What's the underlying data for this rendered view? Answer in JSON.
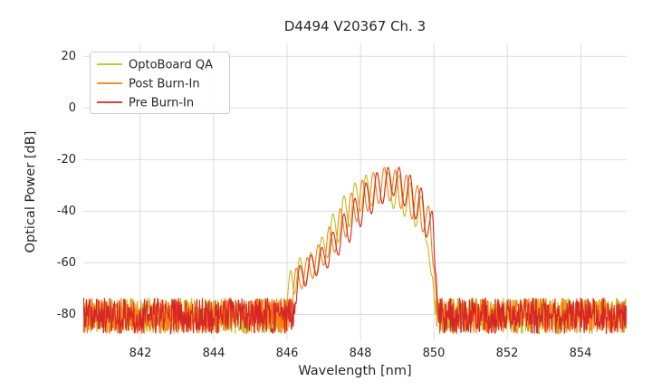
{
  "chart_data": {
    "type": "line",
    "title": "D4494 V20367 Ch. 3",
    "xlabel": "Wavelength [nm]",
    "ylabel": "Optical Power [dB]",
    "xlim": [
      840.45,
      855.25
    ],
    "ylim": [
      -90,
      25
    ],
    "x_ticks": [
      "842",
      "844",
      "846",
      "848",
      "850",
      "852",
      "854"
    ],
    "x_tick_values": [
      842,
      844,
      846,
      848,
      850,
      852,
      854
    ],
    "y_ticks": [
      "20",
      "0",
      "-20",
      "-40",
      "-60",
      "-80"
    ],
    "y_tick_values": [
      20,
      0,
      -20,
      -40,
      -60,
      -80
    ],
    "grid": true,
    "legend_position": "upper left",
    "noise_floor": {
      "mean": -80.5,
      "spread": 7,
      "step_nm": 0.012
    },
    "series": [
      {
        "name": "OptoBoard QA",
        "color": "#bcbd22",
        "seed": 11,
        "signal": [
          [
            845.95,
            -80
          ],
          [
            846.1,
            -63
          ],
          [
            846.2,
            -72
          ],
          [
            846.35,
            -58
          ],
          [
            846.5,
            -68
          ],
          [
            846.65,
            -56
          ],
          [
            846.8,
            -64
          ],
          [
            846.95,
            -50
          ],
          [
            847.1,
            -58
          ],
          [
            847.25,
            -41
          ],
          [
            847.4,
            -52
          ],
          [
            847.55,
            -34
          ],
          [
            847.7,
            -46
          ],
          [
            847.85,
            -29
          ],
          [
            848.0,
            -40
          ],
          [
            848.15,
            -26
          ],
          [
            848.3,
            -38
          ],
          [
            848.45,
            -25
          ],
          [
            848.6,
            -37
          ],
          [
            848.75,
            -25
          ],
          [
            848.9,
            -39
          ],
          [
            849.05,
            -26
          ],
          [
            849.2,
            -42
          ],
          [
            849.35,
            -29
          ],
          [
            849.5,
            -46
          ],
          [
            849.65,
            -34
          ],
          [
            849.8,
            -52
          ],
          [
            849.95,
            -65
          ],
          [
            850.05,
            -80
          ]
        ]
      },
      {
        "name": "Post Burn-In",
        "color": "#ff7f0e",
        "seed": 23,
        "signal": [
          [
            846.1,
            -80
          ],
          [
            846.25,
            -62
          ],
          [
            846.4,
            -70
          ],
          [
            846.55,
            -58
          ],
          [
            846.7,
            -66
          ],
          [
            846.85,
            -53
          ],
          [
            847.0,
            -61
          ],
          [
            847.15,
            -46
          ],
          [
            847.3,
            -56
          ],
          [
            847.45,
            -39
          ],
          [
            847.6,
            -50
          ],
          [
            847.75,
            -33
          ],
          [
            847.9,
            -44
          ],
          [
            848.05,
            -28
          ],
          [
            848.2,
            -40
          ],
          [
            848.35,
            -25
          ],
          [
            848.5,
            -37
          ],
          [
            848.65,
            -23
          ],
          [
            848.8,
            -36
          ],
          [
            848.95,
            -24
          ],
          [
            849.1,
            -39
          ],
          [
            849.25,
            -26
          ],
          [
            849.4,
            -43
          ],
          [
            849.55,
            -30
          ],
          [
            849.7,
            -48
          ],
          [
            849.85,
            -38
          ],
          [
            850.0,
            -62
          ],
          [
            850.1,
            -80
          ]
        ]
      },
      {
        "name": "Pre Burn-In",
        "color": "#d62728",
        "seed": 37,
        "signal": [
          [
            846.2,
            -80
          ],
          [
            846.35,
            -61
          ],
          [
            846.5,
            -69
          ],
          [
            846.65,
            -57
          ],
          [
            846.8,
            -65
          ],
          [
            846.95,
            -54
          ],
          [
            847.1,
            -62
          ],
          [
            847.25,
            -48
          ],
          [
            847.4,
            -57
          ],
          [
            847.55,
            -41
          ],
          [
            847.7,
            -52
          ],
          [
            847.85,
            -35
          ],
          [
            848.0,
            -46
          ],
          [
            848.15,
            -29
          ],
          [
            848.3,
            -41
          ],
          [
            848.45,
            -25
          ],
          [
            848.6,
            -37
          ],
          [
            848.75,
            -23
          ],
          [
            848.9,
            -34
          ],
          [
            849.05,
            -23
          ],
          [
            849.2,
            -38
          ],
          [
            849.35,
            -26
          ],
          [
            849.5,
            -43
          ],
          [
            849.65,
            -31
          ],
          [
            849.8,
            -50
          ],
          [
            849.95,
            -40
          ],
          [
            850.05,
            -64
          ],
          [
            850.12,
            -80
          ]
        ]
      }
    ]
  }
}
